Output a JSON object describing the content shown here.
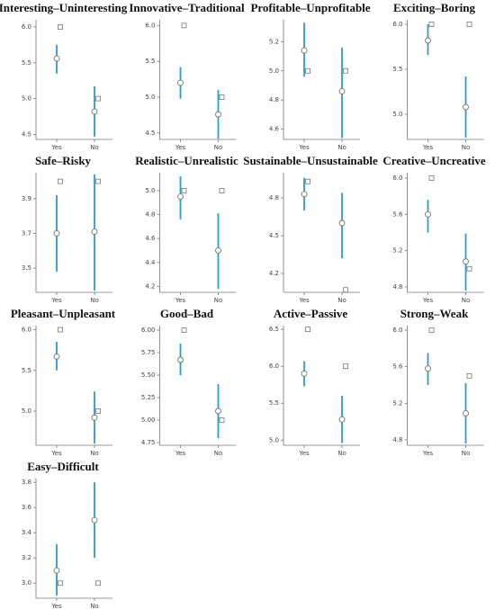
{
  "chart_data": [
    {
      "type": "errorbar",
      "title": "Interesting–Uninteresting",
      "categories": [
        "Yes",
        "No"
      ],
      "means": [
        5.56,
        4.82
      ],
      "lower": [
        5.35,
        4.47
      ],
      "upper": [
        5.75,
        5.17
      ],
      "markers": [
        6.0,
        5.0
      ],
      "ylim": [
        4.43,
        6.1
      ],
      "yticks": [
        4.5,
        {
          "value": 5,
          "label": "5.0"
        },
        5.5,
        {
          "value": 6,
          "label": "6.0"
        }
      ],
      "color": "#2a9fc4"
    },
    {
      "type": "errorbar",
      "title": "Innovative–Traditional",
      "categories": [
        "Yes",
        "No"
      ],
      "means": [
        5.2,
        4.76
      ],
      "lower": [
        4.98,
        4.42
      ],
      "upper": [
        5.42,
        5.1
      ],
      "markers": [
        6.0,
        5.0
      ],
      "ylim": [
        4.41,
        6.08
      ],
      "yticks": [
        4.5,
        {
          "value": 5,
          "label": "5.0"
        },
        5.5,
        {
          "value": 6,
          "label": "6.0"
        }
      ],
      "color": "#2a9fc4"
    },
    {
      "type": "errorbar",
      "title": "Profitable–Unprofitable",
      "categories": [
        "Yes",
        "No"
      ],
      "means": [
        5.14,
        4.86
      ],
      "lower": [
        4.96,
        4.54
      ],
      "upper": [
        5.33,
        5.16
      ],
      "markers": [
        5.0,
        5.0
      ],
      "ylim": [
        4.53,
        5.35
      ],
      "yticks": [
        4.6,
        4.8,
        {
          "value": 5,
          "label": "5.0"
        },
        5.2
      ],
      "color": "#2a9fc4"
    },
    {
      "type": "errorbar",
      "title": "Exciting–Boring",
      "categories": [
        "Yes",
        "No"
      ],
      "means": [
        5.82,
        5.08
      ],
      "lower": [
        5.66,
        4.74
      ],
      "upper": [
        6.0,
        5.42
      ],
      "markers": [
        6.0,
        6.0
      ],
      "ylim": [
        4.72,
        6.05
      ],
      "yticks": [
        {
          "value": 5,
          "label": "5.0"
        },
        5.5,
        {
          "value": 6,
          "label": "6.0"
        }
      ],
      "color": "#2a9fc4"
    },
    {
      "type": "errorbar",
      "title": "Safe–Risky",
      "categories": [
        "Yes",
        "No"
      ],
      "means": [
        3.7,
        3.71
      ],
      "lower": [
        3.48,
        3.37
      ],
      "upper": [
        3.92,
        4.04
      ],
      "markers": [
        4.0,
        4.0
      ],
      "ylim": [
        3.36,
        4.05
      ],
      "yticks": [
        3.5,
        3.7,
        3.9
      ],
      "color": "#2a9fc4"
    },
    {
      "type": "errorbar",
      "title": "Realistic–Unrealistic",
      "categories": [
        "Yes",
        "No"
      ],
      "means": [
        4.95,
        4.5
      ],
      "lower": [
        4.76,
        4.18
      ],
      "upper": [
        5.12,
        4.81
      ],
      "markers": [
        5.0,
        5.0
      ],
      "ylim": [
        4.15,
        5.15
      ],
      "yticks": [
        4.2,
        4.4,
        4.6,
        4.8,
        {
          "value": 5,
          "label": "5.0"
        }
      ],
      "color": "#2a9fc4"
    },
    {
      "type": "errorbar",
      "title": "Sustainable–Unsustainable",
      "categories": [
        "Yes",
        "No"
      ],
      "means": [
        4.83,
        4.6
      ],
      "lower": [
        4.7,
        4.32
      ],
      "upper": [
        4.96,
        4.84
      ],
      "markers": [
        4.93,
        4.07
      ],
      "ylim": [
        4.05,
        5.0
      ],
      "yticks": [
        4.2,
        4.5,
        4.8
      ],
      "color": "#2a9fc4"
    },
    {
      "type": "errorbar",
      "title": "Creative–Uncreative",
      "categories": [
        "Yes",
        "No"
      ],
      "means": [
        5.6,
        5.08
      ],
      "lower": [
        5.4,
        4.76
      ],
      "upper": [
        5.76,
        5.39
      ],
      "markers": [
        6.0,
        5.0
      ],
      "ylim": [
        4.74,
        6.06
      ],
      "yticks": [
        4.8,
        5.2,
        5.6,
        {
          "value": 6,
          "label": "6.0"
        }
      ],
      "color": "#2a9fc4"
    },
    {
      "type": "errorbar",
      "title": "Pleasant–Unpleasant",
      "categories": [
        "Yes",
        "No"
      ],
      "means": [
        5.67,
        4.92
      ],
      "lower": [
        5.5,
        4.6
      ],
      "upper": [
        5.85,
        5.24
      ],
      "markers": [
        6.0,
        5.0
      ],
      "ylim": [
        4.58,
        6.05
      ],
      "yticks": [
        {
          "value": 5,
          "label": "5.0"
        },
        5.5,
        {
          "value": 6,
          "label": "6.0"
        }
      ],
      "color": "#2a9fc4"
    },
    {
      "type": "errorbar",
      "title": "Good–Bad",
      "categories": [
        "Yes",
        "No"
      ],
      "means": [
        5.67,
        5.1
      ],
      "lower": [
        5.5,
        4.8
      ],
      "upper": [
        5.85,
        5.4
      ],
      "markers": [
        6.0,
        5.0
      ],
      "ylim": [
        4.72,
        6.05
      ],
      "yticks": [
        {
          "value": 4.75,
          "label": "4.75"
        },
        {
          "value": 5,
          "label": "5.00"
        },
        {
          "value": 5.25,
          "label": "5.25"
        },
        {
          "value": 5.5,
          "label": "5.50"
        },
        {
          "value": 5.75,
          "label": "5.75"
        },
        {
          "value": 6,
          "label": "6.00"
        }
      ],
      "color": "#2a9fc4"
    },
    {
      "type": "errorbar",
      "title": "Active–Passive",
      "categories": [
        "Yes",
        "No"
      ],
      "means": [
        5.9,
        5.28
      ],
      "lower": [
        5.73,
        4.96
      ],
      "upper": [
        6.07,
        5.6
      ],
      "markers": [
        6.5,
        6.0
      ],
      "ylim": [
        4.93,
        6.55
      ],
      "yticks": [
        {
          "value": 5,
          "label": "5.0"
        },
        5.5,
        {
          "value": 6,
          "label": "6.0"
        },
        6.5
      ],
      "color": "#2a9fc4"
    },
    {
      "type": "errorbar",
      "title": "Strong–Weak",
      "categories": [
        "Yes",
        "No"
      ],
      "means": [
        5.58,
        5.09
      ],
      "lower": [
        5.4,
        4.76
      ],
      "upper": [
        5.75,
        5.42
      ],
      "markers": [
        6.0,
        5.5
      ],
      "ylim": [
        4.74,
        6.05
      ],
      "yticks": [
        4.8,
        5.2,
        5.6,
        {
          "value": 6,
          "label": "6.0"
        }
      ],
      "color": "#2a9fc4"
    },
    {
      "type": "errorbar",
      "title": "Easy–Difficult",
      "categories": [
        "Yes",
        "No"
      ],
      "means": [
        3.1,
        3.5
      ],
      "lower": [
        2.9,
        3.2
      ],
      "upper": [
        3.31,
        3.8
      ],
      "markers": [
        3.0,
        3.0
      ],
      "ylim": [
        2.88,
        3.83
      ],
      "yticks": [
        {
          "value": 3,
          "label": "3.0"
        },
        3.2,
        3.4,
        3.6,
        3.8
      ],
      "color": "#2a9fc4"
    }
  ]
}
